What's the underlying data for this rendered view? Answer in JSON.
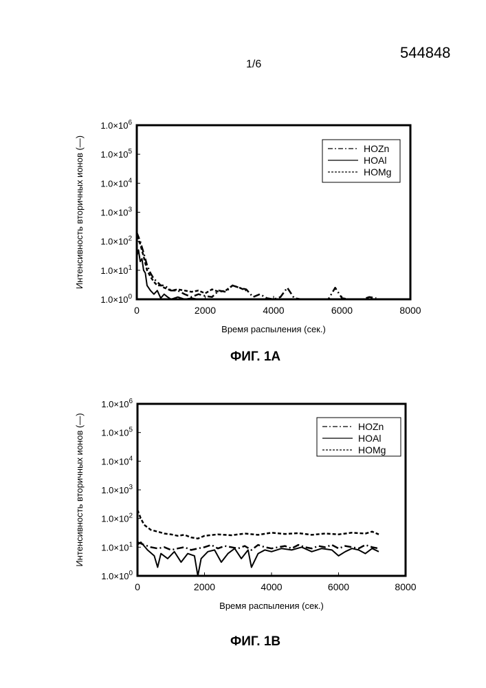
{
  "header": {
    "doc_number": "544848",
    "page_number": "1/6"
  },
  "chart_data": [
    {
      "type": "line",
      "caption": "ФИГ. 1А",
      "xlabel": "Время распыления (сек.)",
      "ylabel": "Интенсивность вторичных ионов (—)",
      "xlim": [
        0,
        8000
      ],
      "ylim": [
        1,
        1000000
      ],
      "yscale": "log",
      "xticks": [
        "0",
        "2000",
        "4000",
        "6000",
        "8000"
      ],
      "yticks": [
        {
          "base": "1.0×10",
          "exp": "0"
        },
        {
          "base": "1.0×10",
          "exp": "1"
        },
        {
          "base": "1.0×10",
          "exp": "2"
        },
        {
          "base": "1.0×10",
          "exp": "3"
        },
        {
          "base": "1.0×10",
          "exp": "4"
        },
        {
          "base": "1.0×10",
          "exp": "5"
        },
        {
          "base": "1.0×10",
          "exp": "6"
        }
      ],
      "legend_position": "top-right",
      "series": [
        {
          "name": "HOZn",
          "style": "dashdot",
          "x": [
            0,
            100,
            200,
            300,
            400,
            500,
            600,
            700,
            800,
            900,
            1000,
            1200,
            1400,
            1600,
            1800,
            2000,
            2200,
            2400,
            2600,
            2800,
            3000,
            3200,
            3400,
            3600,
            3800,
            4000,
            4200,
            4400,
            4600,
            4800,
            5000,
            5200,
            5400,
            5600,
            5800,
            6000,
            6200,
            6400,
            6600,
            6800,
            7000
          ],
          "y": [
            200,
            100,
            40,
            15,
            8,
            5,
            4,
            3,
            3,
            2.5,
            2,
            2,
            1.5,
            1.2,
            1.5,
            1.3,
            1.2,
            2,
            1.8,
            3,
            2.5,
            2.2,
            1.2,
            1.5,
            1.1,
            1,
            1.2,
            2.5,
            1.1,
            1,
            1,
            1,
            1,
            1,
            2.5,
            1.1,
            1,
            1,
            1,
            1.2,
            1.1
          ]
        },
        {
          "name": "HOAl",
          "style": "solid",
          "x": [
            0,
            50,
            100,
            150,
            200,
            250,
            300,
            400,
            500,
            600,
            700,
            800,
            900,
            1000,
            1200,
            1400,
            1600,
            1800,
            2000,
            2400,
            2800,
            3200,
            3600,
            4000
          ],
          "y": [
            30,
            50,
            20,
            25,
            10,
            8,
            3,
            2,
            1.5,
            2,
            1.1,
            1.5,
            1.2,
            1,
            1.2,
            1,
            1.1,
            1,
            1,
            1,
            1,
            1,
            1,
            1
          ]
        },
        {
          "name": "HOMg",
          "style": "dashed",
          "x": [
            0,
            100,
            200,
            300,
            400,
            500,
            600,
            700,
            800,
            1000,
            1200,
            1400,
            1600,
            1800,
            2000,
            2200,
            2400,
            2600,
            2800,
            3000,
            3200
          ],
          "y": [
            150,
            80,
            30,
            10,
            6,
            4,
            3,
            3,
            2.5,
            2,
            2.2,
            2,
            1.8,
            2,
            1.6,
            2.2,
            1.8,
            2,
            3,
            2.5,
            2
          ]
        }
      ]
    },
    {
      "type": "line",
      "caption": "ФИГ. 1В",
      "xlabel": "Время распыления (сек.)",
      "ylabel": "Интенсивность вторичных ионов (—)",
      "xlim": [
        0,
        8000
      ],
      "ylim": [
        1,
        1000000
      ],
      "yscale": "log",
      "xticks": [
        "0",
        "2000",
        "4000",
        "6000",
        "8000"
      ],
      "yticks": [
        {
          "base": "1.0×10",
          "exp": "0"
        },
        {
          "base": "1.0×10",
          "exp": "1"
        },
        {
          "base": "1.0×10",
          "exp": "2"
        },
        {
          "base": "1.0×10",
          "exp": "3"
        },
        {
          "base": "1.0×10",
          "exp": "4"
        },
        {
          "base": "1.0×10",
          "exp": "5"
        },
        {
          "base": "1.0×10",
          "exp": "6"
        }
      ],
      "legend_position": "top-right",
      "series": [
        {
          "name": "HOZn",
          "style": "dashdot",
          "x": [
            0,
            200,
            400,
            600,
            800,
            1000,
            1200,
            1400,
            1600,
            1800,
            2000,
            2200,
            2400,
            2600,
            2800,
            3000,
            3200,
            3400,
            3600,
            3800,
            4000,
            4200,
            4400,
            4600,
            4800,
            5000,
            5200,
            5400,
            5600,
            5800,
            6000,
            6200,
            6400,
            6600,
            6800,
            7000,
            7200
          ],
          "y": [
            15,
            12,
            10,
            9,
            10,
            8,
            9,
            10,
            8,
            9,
            10,
            12,
            9,
            11,
            10,
            9,
            11,
            8,
            12,
            10,
            9,
            10,
            11,
            9,
            12,
            10,
            9,
            11,
            10,
            12,
            9,
            11,
            10,
            9,
            12,
            10,
            9
          ]
        },
        {
          "name": "HOAl",
          "style": "solid",
          "x": [
            0,
            100,
            300,
            500,
            600,
            700,
            900,
            1100,
            1300,
            1500,
            1700,
            1800,
            1900,
            2100,
            2300,
            2500,
            2700,
            2900,
            3100,
            3300,
            3400,
            3600,
            3800,
            4000,
            4300,
            4600,
            4900,
            5200,
            5500,
            5800,
            6000,
            6200,
            6400,
            6600,
            6800,
            7000,
            7200
          ],
          "y": [
            12,
            15,
            8,
            5,
            2,
            6,
            4,
            7,
            3,
            6,
            5,
            1,
            4,
            7,
            8,
            3,
            6,
            9,
            4,
            8,
            2,
            6,
            8,
            7,
            9,
            8,
            10,
            7,
            9,
            8,
            5,
            7,
            9,
            8,
            6,
            9,
            7
          ]
        },
        {
          "name": "HOMg",
          "style": "dashed",
          "x": [
            0,
            100,
            200,
            400,
            600,
            800,
            1000,
            1200,
            1400,
            1600,
            1800,
            2000,
            2400,
            2800,
            3200,
            3600,
            4000,
            4400,
            4800,
            5200,
            5600,
            6000,
            6400,
            6800,
            7000,
            7200
          ],
          "y": [
            200,
            100,
            60,
            40,
            35,
            30,
            28,
            25,
            27,
            22,
            20,
            25,
            28,
            26,
            30,
            27,
            32,
            29,
            31,
            27,
            30,
            28,
            32,
            30,
            35,
            28
          ]
        }
      ]
    }
  ]
}
